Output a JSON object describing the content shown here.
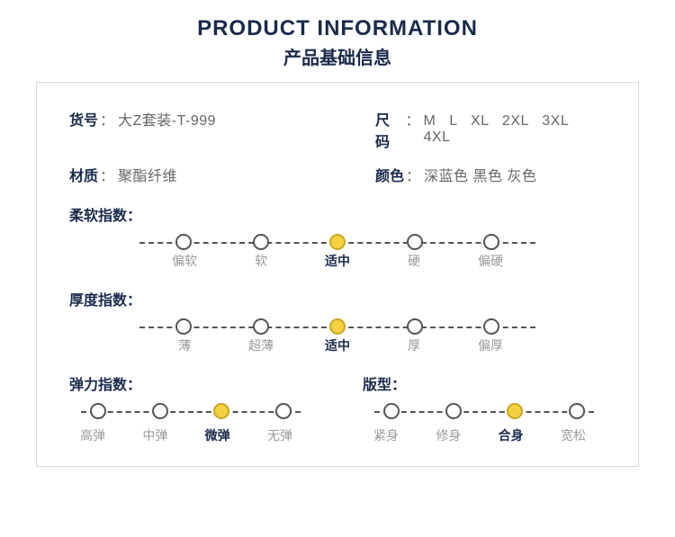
{
  "header": {
    "title_en": "PRODUCT INFORMATION",
    "title_zh": "产品基础信息"
  },
  "info": {
    "code_label": "货号",
    "code_value": "大Z套装-T-999",
    "size_label": "尺码",
    "size_value": "M L XL 2XL 3XL 4XL",
    "material_label": "材质",
    "material_value": "聚酯纤维",
    "color_label": "颜色",
    "color_value": "深蓝色  黑色  灰色",
    "sep": "："
  },
  "scales": {
    "softness": {
      "title": "柔软指数：",
      "options": [
        "偏软",
        "软",
        "适中",
        "硬",
        "偏硬"
      ],
      "selected": 2
    },
    "thickness": {
      "title": "厚度指数：",
      "options": [
        "薄",
        "超薄",
        "适中",
        "厚",
        "偏厚"
      ],
      "selected": 2
    },
    "elasticity": {
      "title": "弹力指数：",
      "options": [
        "高弹",
        "中弹",
        "微弹",
        "无弹"
      ],
      "selected": 2
    },
    "fit": {
      "title": "版型：",
      "options": [
        "紧身",
        "修身",
        "合身",
        "宽松"
      ],
      "selected": 2
    }
  },
  "style": {
    "dot_active_bg": "#f5d040",
    "dot_active_border": "#c9a820",
    "dot_bg": "#ffffff",
    "dot_border": "#555555",
    "text_primary": "#1a2a4a",
    "text_muted": "#999999",
    "card_border": "#d8d8d8",
    "dash_color": "#555555"
  }
}
